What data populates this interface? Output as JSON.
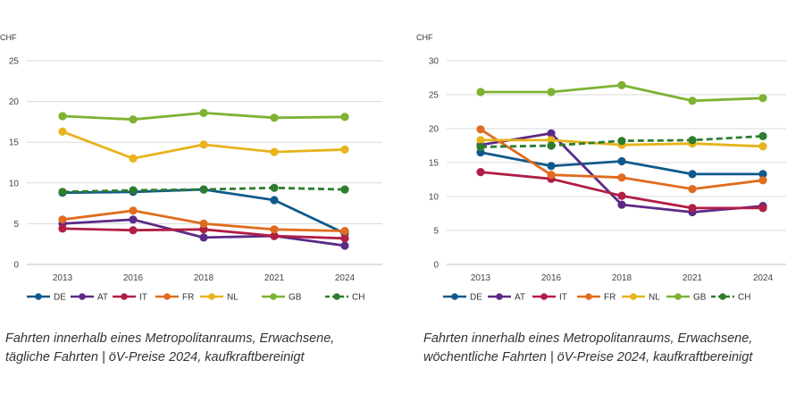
{
  "chart_data": [
    {
      "type": "line",
      "ylabel": "CHF",
      "ylim": [
        0,
        25
      ],
      "yticks": [
        0,
        5,
        10,
        15,
        20,
        25
      ],
      "x": [
        "2013",
        "2016",
        "2018",
        "2021",
        "2024"
      ],
      "grid": true,
      "legend_position": "bottom",
      "series": [
        {
          "name": "DE",
          "color": "#0f5a8c",
          "dashed": false,
          "values": [
            8.8,
            8.9,
            9.2,
            7.9,
            3.8
          ]
        },
        {
          "name": "AT",
          "color": "#5c2a86",
          "dashed": false,
          "values": [
            5.0,
            5.5,
            3.3,
            3.5,
            2.3
          ]
        },
        {
          "name": "IT",
          "color": "#b01e45",
          "dashed": false,
          "values": [
            4.4,
            4.2,
            4.3,
            3.5,
            3.2
          ]
        },
        {
          "name": "FR",
          "color": "#e06c1e",
          "dashed": false,
          "values": [
            5.5,
            6.6,
            5.0,
            4.3,
            4.1
          ]
        },
        {
          "name": "NL",
          "color": "#e8b31b",
          "dashed": false,
          "values": [
            16.3,
            13.0,
            14.7,
            13.8,
            14.1
          ]
        },
        {
          "name": "GB",
          "color": "#7db233",
          "dashed": false,
          "values": [
            18.2,
            17.8,
            18.6,
            18.0,
            18.1
          ]
        },
        {
          "name": "CH",
          "color": "#2e7d2e",
          "dashed": true,
          "values": [
            8.9,
            9.1,
            9.2,
            9.4,
            9.2
          ]
        }
      ]
    },
    {
      "type": "line",
      "ylabel": "CHF",
      "ylim": [
        0,
        30
      ],
      "yticks": [
        0,
        5,
        10,
        15,
        20,
        25,
        30
      ],
      "x": [
        "2013",
        "2016",
        "2018",
        "2021",
        "2024"
      ],
      "grid": true,
      "legend_position": "bottom",
      "series": [
        {
          "name": "DE",
          "color": "#0f5a8c",
          "dashed": false,
          "values": [
            16.5,
            14.5,
            15.2,
            13.3,
            13.3
          ]
        },
        {
          "name": "AT",
          "color": "#5c2a86",
          "dashed": false,
          "values": [
            17.6,
            19.3,
            8.8,
            7.7,
            8.6
          ]
        },
        {
          "name": "IT",
          "color": "#b01e45",
          "dashed": false,
          "values": [
            13.6,
            12.6,
            10.1,
            8.3,
            8.3
          ]
        },
        {
          "name": "FR",
          "color": "#e06c1e",
          "dashed": false,
          "values": [
            19.9,
            13.2,
            12.8,
            11.1,
            12.4
          ]
        },
        {
          "name": "NL",
          "color": "#e8b31b",
          "dashed": false,
          "values": [
            18.3,
            18.3,
            17.6,
            17.8,
            17.4
          ]
        },
        {
          "name": "GB",
          "color": "#7db233",
          "dashed": false,
          "values": [
            25.4,
            25.4,
            26.4,
            24.1,
            24.5
          ]
        },
        {
          "name": "CH",
          "color": "#2e7d2e",
          "dashed": true,
          "values": [
            17.3,
            17.5,
            18.2,
            18.3,
            18.9
          ]
        }
      ]
    }
  ],
  "captions": [
    {
      "line1": "Fahrten innerhalb eines Metropolitanraums, Erwachsene,",
      "line2": "tägliche Fahrten | öV-Preise 2024, kaufkraftbereinigt"
    },
    {
      "line1": "Fahrten innerhalb eines Metropolitanraums, Erwachsene,",
      "line2": "wöchentliche Fahrten | öV-Preise 2024, kaufkraftbereinigt"
    }
  ]
}
